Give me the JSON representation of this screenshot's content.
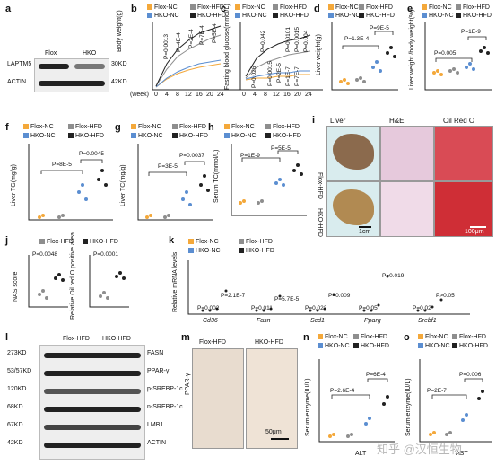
{
  "panels": {
    "a": {
      "label": "a",
      "groups": [
        "Flox",
        "HKO"
      ],
      "bands": [
        "LAPTM5",
        "ACTIN"
      ],
      "sizes": [
        "30KD",
        "42KD"
      ]
    },
    "b": {
      "label": "b",
      "legend": [
        "Flox-NC",
        "Flox-HFD",
        "HKO-NC",
        "HKO-HFD"
      ],
      "ylabel": "Body weight(g)",
      "xlabel": "(week)",
      "ticks": [
        "0",
        "4",
        "8",
        "12",
        "16",
        "20",
        "24"
      ],
      "pvals": [
        "P=0.0013",
        "P=4E-4",
        "P=2E-4",
        "P=7E-4",
        "P=5E-4"
      ]
    },
    "c": {
      "label": "c",
      "legend": [
        "Flox-NC",
        "Flox-HFD",
        "HKO-NC",
        "HKO-HFD"
      ],
      "ylabel": "Fasting blood glucose(mmol/L)",
      "ticks": [
        "0",
        "4",
        "8",
        "12",
        "16",
        "20",
        "24"
      ],
      "pvals": [
        "P=0.042",
        "P=0.026",
        "P=0.0015",
        "P=2E-5",
        "P=0.0101",
        "P=0.0015",
        "P=0.004",
        "P=1E-7",
        "P=7E-7"
      ]
    },
    "d": {
      "label": "d",
      "legend": [
        "Flox-NC",
        "Flox-HFD",
        "HKO-NC",
        "HKO-HFD"
      ],
      "ylabel": "Liver weight(g)",
      "pvals": [
        "P=1.3E-4",
        "P=9E-5"
      ]
    },
    "e": {
      "label": "e",
      "legend": [
        "Flox-NC",
        "Flox-HFD",
        "HKO-NC",
        "HKO-HFD"
      ],
      "ylabel": "Liver weight /body weight(%)",
      "pvals": [
        "P=0.005",
        "P=1E-9"
      ]
    },
    "f": {
      "label": "f",
      "legend": [
        "Flox-NC",
        "Flox-HFD",
        "HKO-NC",
        "HKO-HFD"
      ],
      "ylabel": "Liver TG(mg/g)",
      "pvals": [
        "P=8E-5",
        "P=0.0045"
      ]
    },
    "g": {
      "label": "g",
      "legend": [
        "Flox-NC",
        "Flox-HFD",
        "HKO-NC",
        "HKO-HFD"
      ],
      "ylabel": "Liver TC(mg/g)",
      "pvals": [
        "P=3E-5",
        "P=0.0037"
      ]
    },
    "h": {
      "label": "h",
      "legend": [
        "Flox-NC",
        "Flox-HFD",
        "HKO-NC",
        "HKO-HFD"
      ],
      "ylabel": "Serum TC(mmol/L)",
      "pvals": [
        "P=1E-9",
        "P=5E-5"
      ]
    },
    "i": {
      "label": "i",
      "cols": [
        "Liver",
        "H&E",
        "Oil Red O"
      ],
      "rows": [
        "Flox-HFD",
        "HKO-HFD"
      ],
      "scale1": "1cm",
      "scale2": "100μm"
    },
    "j": {
      "label": "j",
      "legend": [
        "Flox-HFD",
        "HKO-HFD"
      ],
      "ylabel1": "NAS score",
      "ylabel2": "Relative Oil red O positive area",
      "pvals": [
        "P=0.0048",
        "P=0.0001"
      ]
    },
    "k": {
      "label": "k",
      "legend": [
        "Flox-NC",
        "Flox-HFD",
        "HKO-NC",
        "HKO-HFD"
      ],
      "ylabel": "Relative mRNA levels",
      "genes": [
        "Cd36",
        "Fasn",
        "Scd1",
        "Pparg",
        "Srebf1"
      ],
      "pvals": [
        "P=0.002",
        "P=2.1E-7",
        "P=0.011",
        "P=5.7E-5",
        "P=0.022",
        "P=0.009",
        "P=0.05",
        "P=0.019",
        "P=0.02",
        "P>0.05"
      ]
    },
    "l": {
      "label": "l",
      "groups": [
        "Flox-HFD",
        "HKO-HFD"
      ],
      "bands": [
        "FASN",
        "PPAR-γ",
        "p-SREBP-1c",
        "n-SREBP-1c",
        "LMB1",
        "ACTIN"
      ],
      "sizes": [
        "273KD",
        "53/57KD",
        "120KD",
        "68KD",
        "67KD",
        "42KD"
      ]
    },
    "m": {
      "label": "m",
      "cols": [
        "Flox-HFD",
        "HKO-HFD"
      ],
      "ylabel": "PPAR-γ",
      "scale": "50μm"
    },
    "n": {
      "label": "n",
      "legend": [
        "Flox-NC",
        "Flox-HFD",
        "HKO-NC",
        "HKO-HFD"
      ],
      "ylabel": "Serum enzyme(IU/L)",
      "xlabel": "ALT",
      "pvals": [
        "P=2.6E-4",
        "P=6E-4"
      ]
    },
    "o": {
      "label": "o",
      "legend": [
        "Flox-NC",
        "Flox-HFD",
        "HKO-NC",
        "HKO-HFD"
      ],
      "ylabel": "Serum enzyme(IU/L)",
      "xlabel": "AST",
      "pvals": [
        "P=2E-7",
        "P=0.006"
      ]
    }
  },
  "watermark": "知乎 @汉恒生物",
  "colors": {
    "flox_nc": "#f4a83a",
    "flox_hfd": "#8e8e8e",
    "hko_nc": "#5b8ed1",
    "hko_hfd": "#222222"
  }
}
